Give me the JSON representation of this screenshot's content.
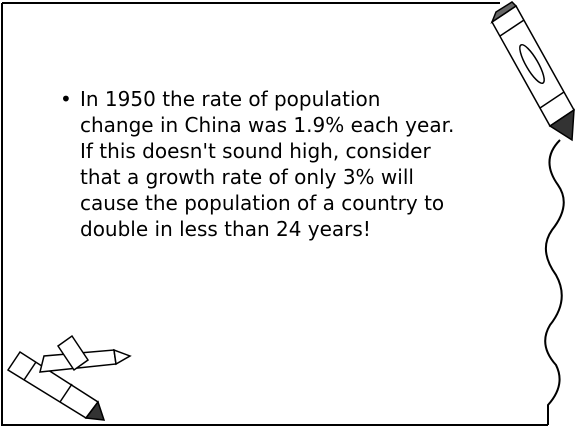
{
  "slide": {
    "bullets": [
      {
        "lines": [
          "In 1950 the rate of population",
          "change in China was 1.9% each year.",
          "If this doesn't sound high, consider",
          "that a growth rate of only 3% will",
          "cause the population of a country to",
          "double in less than 24 years!"
        ]
      }
    ]
  }
}
